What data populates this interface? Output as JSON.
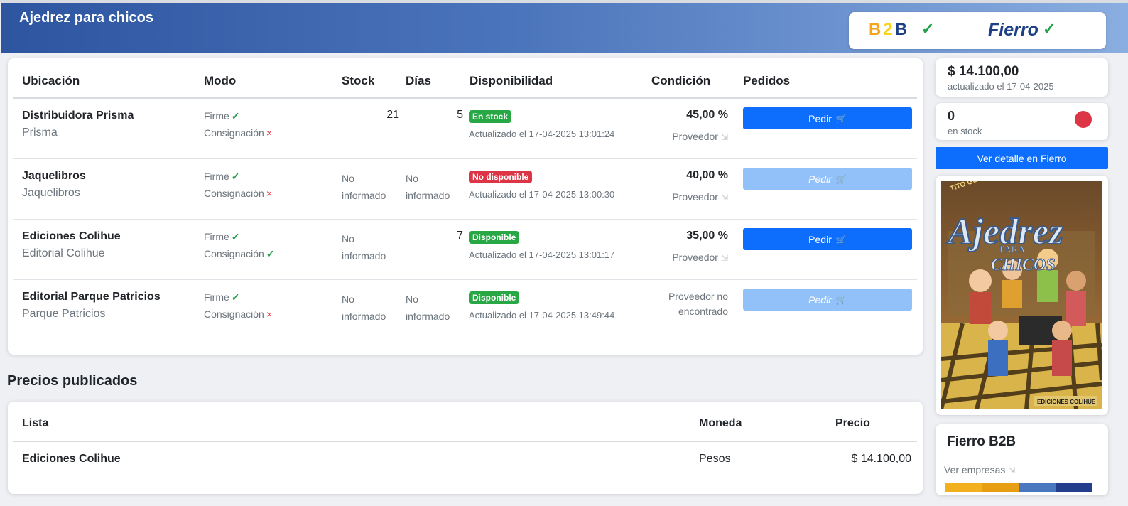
{
  "header": {
    "title": "Ajedrez para chicos",
    "b2b_letters": [
      "B",
      "2",
      "B"
    ],
    "fierro_label": "Fierro",
    "ok_mark": "✓"
  },
  "table": {
    "columns": [
      "Ubicación",
      "Modo",
      "Stock",
      "Días",
      "Disponibilidad",
      "Condición",
      "Pedidos"
    ],
    "modo_firme": "Firme",
    "modo_consignacion": "Consignación",
    "provider_label": "Proveedor",
    "order_label": "Pedir",
    "not_informed_1": "No",
    "not_informed_2": "informado",
    "rows": [
      {
        "name": "Distribuidora Prisma",
        "sub": "Prisma",
        "firme": "✓",
        "consignacion": "×",
        "stock": "21",
        "dias": "5",
        "badge": "En stock",
        "updated": "Actualizado el 17-04-2025 13:01:24",
        "pct": "45,00 %"
      },
      {
        "name": "Jaquelibros",
        "sub": "Jaquelibros",
        "firme": "✓",
        "consignacion": "×",
        "badge": "No disponible",
        "updated": "Actualizado el 17-04-2025 13:00:30",
        "pct": "40,00 %"
      },
      {
        "name": "Ediciones Colihue",
        "sub": "Editorial Colihue",
        "firme": "✓",
        "consignacion": "✓",
        "dias": "7",
        "badge": "Disponible",
        "updated": "Actualizado el 17-04-2025 13:01:17",
        "pct": "35,00 %"
      },
      {
        "name": "Editorial Parque Patricios",
        "sub": "Parque Patricios",
        "firme": "✓",
        "consignacion": "×",
        "badge": "Disponible",
        "updated": "Actualizado el 17-04-2025 13:49:44",
        "prov_nf_1": "Proveedor no",
        "prov_nf_2": "encontrado"
      }
    ]
  },
  "prices": {
    "title": "Precios publicados",
    "columns": [
      "Lista",
      "Moneda",
      "Precio"
    ],
    "rows": [
      {
        "lista": "Ediciones Colihue",
        "moneda": "Pesos",
        "precio": "$ 14.100,00"
      }
    ]
  },
  "sidebar": {
    "price": "$ 14.100,00",
    "price_updated": "actualizado el 17-04-2025",
    "stock": "0",
    "stock_label": "en stock",
    "detail_button": "Ver detalle en Fierro",
    "cover": {
      "author": "TITO GURBANOV",
      "title_main": "Ajedrez",
      "title_para": "PARA",
      "title_chicos": "CHICOS",
      "publisher": "EDICIONES COLIHUE"
    },
    "b2b_title": "Fierro B2B",
    "b2b_link": "Ver empresas",
    "stripe_colors": [
      "#f2b01e",
      "#e89e12",
      "#4a78bf",
      "#233f8c"
    ]
  },
  "colors": {
    "accent": "#0d6efd",
    "success": "#28a745",
    "danger": "#dc3545"
  }
}
